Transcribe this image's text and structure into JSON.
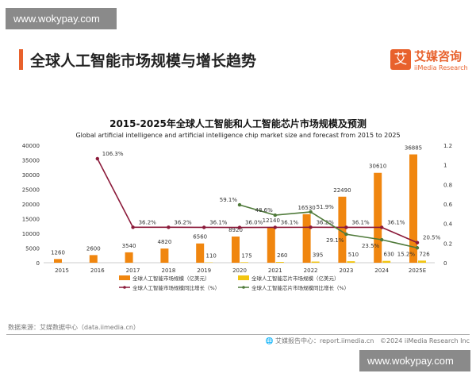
{
  "watermark": "www.wokypay.com",
  "header": {
    "title": "全球人工智能市场规模与增长趋势",
    "logo_cn": "艾媒咨询",
    "logo_en": "iiMedia Research",
    "logo_mark": "艾",
    "accent": "#e8612c"
  },
  "chart_data": {
    "type": "bar+line",
    "title": "2015-2025年全球人工智能和人工智能芯片市场规模及预测",
    "subtitle": "Global artificial intelligence and artificial intelligence chip market size and forecast from 2015 to 2025",
    "categories": [
      "2015",
      "2016",
      "2017",
      "2018",
      "2019",
      "2020",
      "2021",
      "2022",
      "2023",
      "2024",
      "2025E"
    ],
    "y_left": {
      "range": [
        0,
        40000
      ],
      "ticks": [
        "0",
        "5000",
        "10000",
        "15000",
        "20000",
        "25000",
        "30000",
        "35000",
        "40000"
      ]
    },
    "y_right": {
      "range": [
        0,
        1.2
      ],
      "ticks": [
        "0",
        "0.2",
        "0.4",
        "0.6",
        "0.8",
        "1",
        "1.2"
      ]
    },
    "bars": [
      {
        "name": "全球人工智能市场规模（亿美元）",
        "color": "#f0860f",
        "values": [
          1260,
          2600,
          3540,
          4820,
          6560,
          8920,
          12140,
          16530,
          22490,
          30610,
          36885
        ],
        "labels": [
          "1260",
          "2600",
          "3540",
          "4820",
          "6560",
          "8920",
          "12140",
          "16530",
          "22490",
          "30610",
          "36885"
        ]
      },
      {
        "name": "全球人工智能芯片市场规模（亿美元）",
        "color": "#f2c511",
        "values": [
          null,
          null,
          null,
          null,
          110,
          175,
          260,
          395,
          510,
          630,
          726
        ],
        "labels": [
          "",
          "",
          "",
          "",
          "110",
          "175",
          "260",
          "395",
          "510",
          "630",
          "726"
        ]
      }
    ],
    "lines": [
      {
        "name": "全球人工智能市场规模同比增长（%）",
        "color": "#8b1a3a",
        "values": [
          null,
          1.063,
          0.362,
          0.362,
          0.361,
          0.36,
          0.361,
          0.362,
          0.361,
          0.361,
          0.205
        ],
        "labels": [
          "",
          "106.3%",
          "36.2%",
          "36.2%",
          "36.1%",
          "36.0%",
          "36.1%",
          "36.2%",
          "36.1%",
          "36.1%",
          "20.5%"
        ]
      },
      {
        "name": "全球人工智能芯片市场规模同比增长（%）",
        "color": "#4f7a3a",
        "values": [
          null,
          null,
          null,
          null,
          null,
          0.591,
          0.486,
          0.519,
          0.291,
          0.235,
          0.152
        ],
        "labels": [
          "",
          "",
          "",
          "",
          "",
          "59.1%",
          "48.6%",
          "51.9%",
          "29.1%",
          "23.5%",
          "15.2%"
        ]
      }
    ],
    "legend": "bottom",
    "grid": false
  },
  "footer": {
    "source": "数据来源：艾媒数据中心（data.iimedia.cn）",
    "report": "艾媒报告中心：report.iimedia.cn",
    "copyright": "©2024  iiMedia Research  Inc"
  }
}
